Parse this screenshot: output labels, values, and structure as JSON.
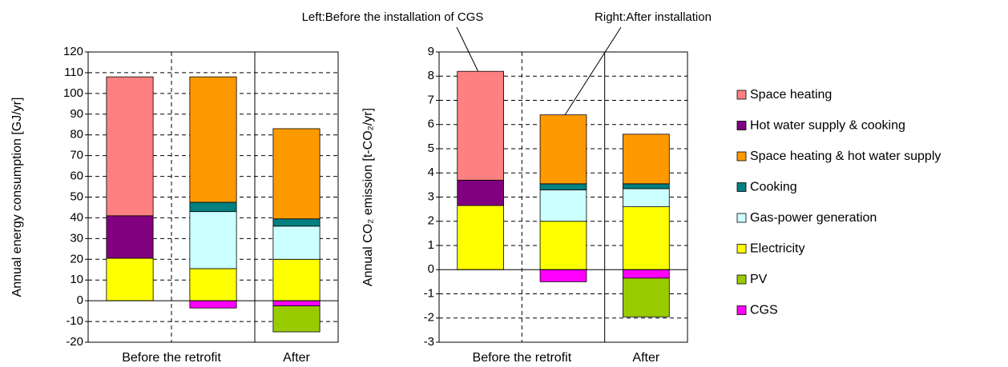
{
  "chart_data": [
    {
      "type": "stacked-bar",
      "y_label": "Annual energy consumption [GJ/yr]",
      "groups": [
        "Before the retrofit",
        "After"
      ],
      "group_sizes": [
        2,
        1
      ],
      "ylim": [
        -20,
        120
      ],
      "yticks": [
        -20,
        -10,
        0,
        10,
        20,
        30,
        40,
        50,
        60,
        70,
        80,
        90,
        100,
        110,
        120
      ],
      "grid": true,
      "series": [
        {
          "name": "Space heating",
          "color": "#ff8080",
          "values": [
            67,
            null,
            null
          ]
        },
        {
          "name": "Hot water supply & cooking",
          "color": "#800080",
          "values": [
            20.5,
            null,
            null
          ]
        },
        {
          "name": "Space heating & hot water supply",
          "color": "#ff9900",
          "values": [
            null,
            60.5,
            43.5
          ]
        },
        {
          "name": "Cooking",
          "color": "#008080",
          "values": [
            null,
            4.5,
            3.5
          ]
        },
        {
          "name": "Gas-power generation",
          "color": "#ccffff",
          "values": [
            null,
            27.5,
            16
          ]
        },
        {
          "name": "Electricity",
          "color": "#ffff00",
          "values": [
            20.5,
            15.5,
            20
          ]
        },
        {
          "name": "PV",
          "color": "#99cc00",
          "values": [
            null,
            null,
            -12.5
          ]
        },
        {
          "name": "CGS",
          "color": "#ff00ff",
          "values": [
            null,
            -3.5,
            -2.5
          ]
        }
      ]
    },
    {
      "type": "stacked-bar",
      "y_label": "Annual CO₂ emission [t-CO₂/yr]",
      "groups": [
        "Before the retrofit",
        "After"
      ],
      "group_sizes": [
        2,
        1
      ],
      "ylim": [
        -3,
        9
      ],
      "yticks": [
        -3,
        -2,
        -1,
        0,
        1,
        2,
        3,
        4,
        5,
        6,
        7,
        8,
        9
      ],
      "grid": true,
      "annotations": [
        "Left:Before the installation of CGS",
        "Right:After installation"
      ],
      "series": [
        {
          "values": [
            4.5,
            null,
            null
          ]
        },
        {
          "values": [
            1.05,
            null,
            null
          ]
        },
        {
          "values": [
            null,
            2.85,
            2.05
          ]
        },
        {
          "values": [
            null,
            0.25,
            0.2
          ]
        },
        {
          "values": [
            null,
            1.3,
            0.75
          ]
        },
        {
          "values": [
            2.65,
            2.0,
            2.6
          ]
        },
        {
          "values": [
            null,
            null,
            -1.6
          ]
        },
        {
          "values": [
            null,
            -0.5,
            -0.35
          ]
        }
      ]
    }
  ]
}
